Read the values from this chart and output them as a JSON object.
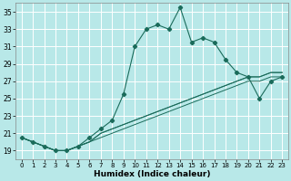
{
  "xlabel": "Humidex (Indice chaleur)",
  "bg_color": "#b8e8e8",
  "grid_color": "#ffffff",
  "line_color": "#1a6b5a",
  "xlim": [
    -0.5,
    23.5
  ],
  "ylim": [
    18,
    36
  ],
  "yticks": [
    19,
    21,
    23,
    25,
    27,
    29,
    31,
    33,
    35
  ],
  "xticks": [
    0,
    1,
    2,
    3,
    4,
    5,
    6,
    7,
    8,
    9,
    10,
    11,
    12,
    13,
    14,
    15,
    16,
    17,
    18,
    19,
    20,
    21,
    22,
    23
  ],
  "main_series": [
    20.5,
    20.0,
    19.5,
    19.0,
    19.0,
    19.5,
    20.5,
    21.5,
    22.5,
    25.5,
    31.0,
    33.0,
    33.5,
    33.0,
    35.5,
    31.5,
    32.0,
    31.5,
    29.5,
    28.0,
    27.5,
    25.0,
    27.0,
    27.5
  ],
  "flat_series": [
    [
      20.5,
      20.0,
      19.5,
      19.0,
      19.0,
      19.5,
      20.0,
      21.0,
      21.5,
      22.0,
      22.5,
      23.0,
      23.5,
      24.0,
      24.5,
      25.0,
      25.5,
      26.0,
      26.5,
      27.0,
      27.5,
      27.5,
      28.0,
      28.0
    ],
    [
      20.5,
      20.0,
      19.5,
      19.0,
      19.0,
      19.5,
      20.0,
      21.0,
      21.5,
      22.0,
      22.5,
      23.0,
      23.5,
      24.0,
      24.5,
      25.0,
      25.5,
      26.0,
      26.5,
      27.0,
      27.5,
      27.5,
      28.0,
      28.0
    ],
    [
      20.5,
      20.0,
      19.5,
      19.0,
      19.0,
      19.5,
      20.0,
      20.5,
      21.0,
      21.5,
      22.0,
      22.5,
      23.0,
      23.5,
      24.0,
      24.5,
      25.0,
      25.5,
      26.0,
      26.5,
      27.0,
      27.0,
      27.5,
      27.5
    ]
  ]
}
